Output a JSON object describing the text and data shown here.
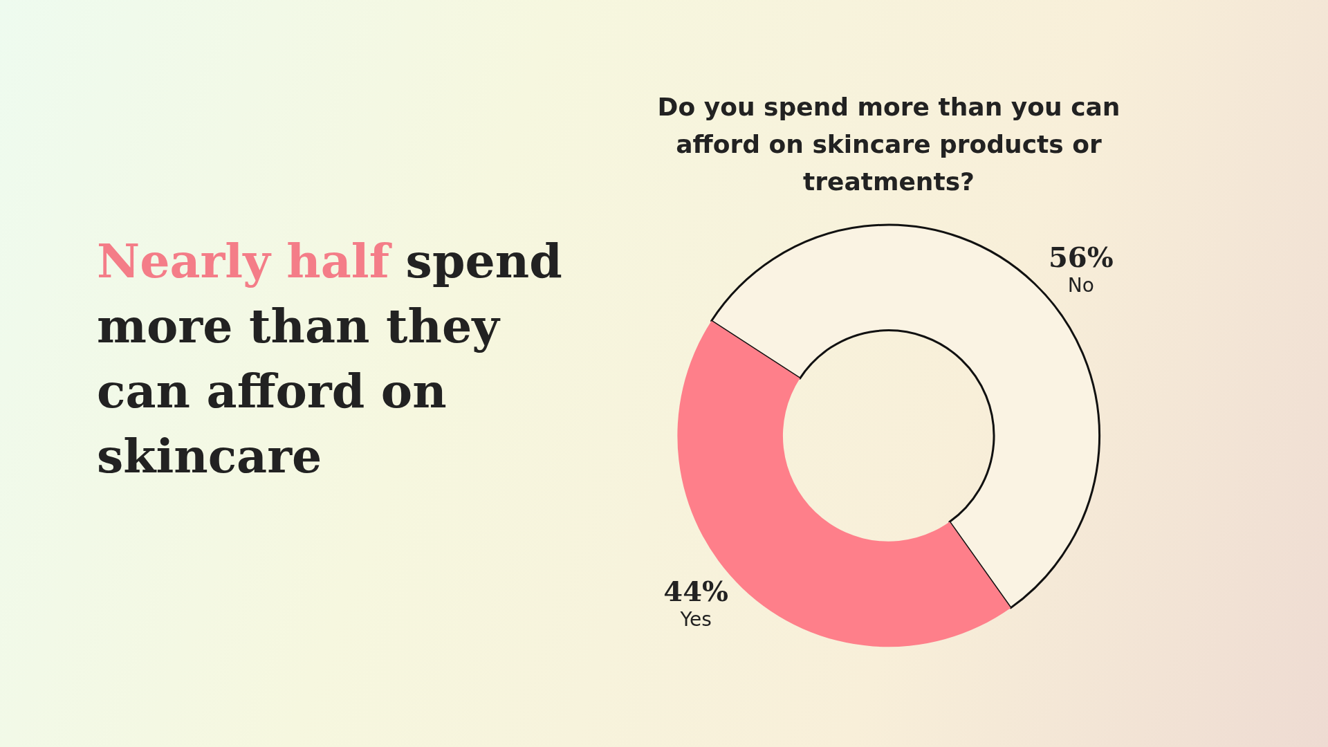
{
  "chart_data": {
    "type": "donut",
    "title": "Do you spend more than you can afford on skincare products or treatments?",
    "annotations": [
      "Nearly half",
      "spend more than they can afford on skincare"
    ],
    "categories": [
      "No",
      "Yes"
    ],
    "values": [
      56,
      44
    ],
    "colors": [
      "#faf3e3",
      "#fe7f8a"
    ],
    "value_labels": [
      "56%",
      "44%"
    ],
    "legend": false
  }
}
